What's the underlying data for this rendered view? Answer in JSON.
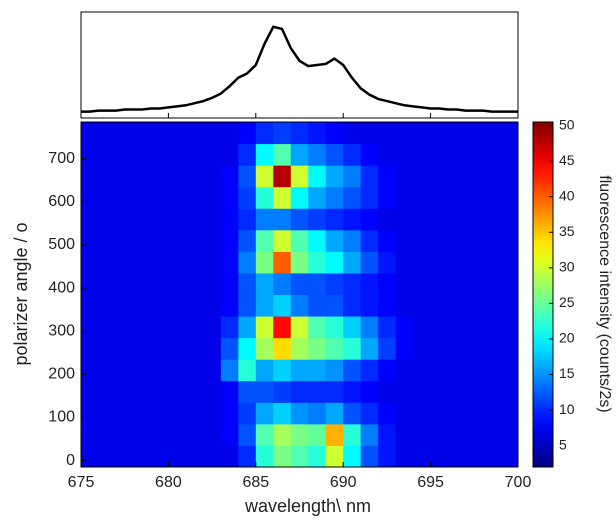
{
  "chart_data": [
    {
      "type": "line",
      "color": "#000000",
      "x": [
        675,
        675.5,
        676,
        676.5,
        677,
        677.5,
        678,
        678.5,
        679,
        679.5,
        680,
        680.5,
        681,
        681.5,
        682,
        682.5,
        683,
        683.5,
        684,
        684.5,
        685,
        685.5,
        686,
        686.5,
        687,
        687.5,
        688,
        688.5,
        689,
        689.5,
        690,
        690.5,
        691,
        691.5,
        692,
        692.5,
        693,
        693.5,
        694,
        694.5,
        695,
        695.5,
        696,
        696.5,
        697,
        697.5,
        698,
        698.5,
        699,
        699.5,
        700
      ],
      "values": [
        0.06,
        0.06,
        0.07,
        0.07,
        0.07,
        0.08,
        0.08,
        0.08,
        0.09,
        0.09,
        0.1,
        0.11,
        0.12,
        0.14,
        0.16,
        0.19,
        0.23,
        0.3,
        0.38,
        0.42,
        0.5,
        0.7,
        0.86,
        0.84,
        0.66,
        0.54,
        0.49,
        0.5,
        0.51,
        0.56,
        0.5,
        0.38,
        0.28,
        0.22,
        0.18,
        0.16,
        0.14,
        0.12,
        0.11,
        0.1,
        0.09,
        0.09,
        0.08,
        0.08,
        0.07,
        0.07,
        0.07,
        0.06,
        0.06,
        0.06,
        0.06
      ],
      "xlim": [
        675,
        700
      ],
      "ylim": [
        0,
        1
      ],
      "xticks": [
        680,
        685,
        690,
        695
      ]
    },
    {
      "type": "heatmap",
      "colormap": "jet",
      "xlabel": "wavelength\\ nm",
      "ylabel": "polarizer angle / o",
      "x_edges": [
        675,
        676,
        677,
        678,
        679,
        680,
        681,
        682,
        683,
        684,
        685,
        686,
        687,
        688,
        689,
        690,
        691,
        692,
        693,
        694,
        695,
        696,
        697,
        698,
        699,
        700
      ],
      "y_edges": [
        -15,
        35,
        85,
        135,
        185,
        235,
        285,
        335,
        385,
        435,
        485,
        535,
        585,
        635,
        685,
        735,
        785
      ],
      "z": [
        [
          7,
          7,
          7,
          7,
          7,
          7,
          7,
          7,
          7,
          10,
          22,
          26,
          24,
          22,
          30,
          20,
          12,
          9,
          7,
          7,
          7,
          7,
          7,
          7,
          7
        ],
        [
          7,
          7,
          7,
          7,
          7,
          7,
          7,
          7,
          8,
          12,
          24,
          28,
          26,
          25,
          36,
          22,
          14,
          9,
          7,
          7,
          7,
          7,
          7,
          7,
          7
        ],
        [
          7,
          7,
          7,
          7,
          7,
          7,
          7,
          7,
          8,
          11,
          16,
          18,
          15,
          14,
          16,
          12,
          10,
          8,
          7,
          7,
          7,
          7,
          7,
          7,
          7
        ],
        [
          7,
          7,
          7,
          7,
          7,
          7,
          7,
          7,
          8,
          12,
          12,
          11,
          10,
          10,
          10,
          9,
          8,
          7,
          7,
          7,
          7,
          7,
          7,
          7,
          7
        ],
        [
          7,
          7,
          7,
          7,
          7,
          7,
          7,
          7,
          14,
          22,
          16,
          18,
          16,
          16,
          15,
          12,
          10,
          8,
          7,
          7,
          7,
          7,
          7,
          7,
          7
        ],
        [
          7,
          7,
          7,
          7,
          7,
          7,
          7,
          7,
          12,
          20,
          28,
          34,
          28,
          26,
          24,
          22,
          16,
          11,
          8,
          7,
          7,
          7,
          7,
          7,
          7
        ],
        [
          7,
          7,
          7,
          7,
          7,
          7,
          7,
          7,
          10,
          16,
          30,
          44,
          30,
          24,
          22,
          18,
          14,
          10,
          8,
          7,
          7,
          7,
          7,
          7,
          7
        ],
        [
          7,
          7,
          7,
          7,
          7,
          7,
          7,
          7,
          8,
          12,
          16,
          18,
          14,
          12,
          12,
          10,
          9,
          8,
          7,
          7,
          7,
          7,
          7,
          7,
          7
        ],
        [
          7,
          7,
          7,
          7,
          7,
          7,
          7,
          7,
          8,
          12,
          16,
          14,
          12,
          12,
          11,
          10,
          9,
          8,
          7,
          7,
          7,
          7,
          7,
          7,
          7
        ],
        [
          7,
          7,
          7,
          7,
          7,
          7,
          7,
          7,
          8,
          14,
          26,
          40,
          26,
          22,
          20,
          16,
          12,
          9,
          7,
          7,
          7,
          7,
          7,
          7,
          7
        ],
        [
          7,
          7,
          7,
          7,
          7,
          7,
          7,
          7,
          8,
          12,
          24,
          30,
          24,
          20,
          16,
          14,
          10,
          8,
          7,
          7,
          7,
          7,
          7,
          7,
          7
        ],
        [
          7,
          7,
          7,
          7,
          7,
          7,
          7,
          7,
          8,
          10,
          14,
          14,
          12,
          11,
          10,
          9,
          8,
          7,
          7,
          7,
          7,
          7,
          7,
          7,
          7
        ],
        [
          7,
          7,
          7,
          7,
          7,
          7,
          7,
          7,
          8,
          11,
          22,
          30,
          20,
          16,
          14,
          12,
          10,
          8,
          7,
          7,
          7,
          7,
          7,
          7,
          7
        ],
        [
          7,
          7,
          7,
          7,
          7,
          7,
          7,
          7,
          8,
          12,
          30,
          48,
          30,
          20,
          16,
          14,
          10,
          8,
          7,
          7,
          7,
          7,
          7,
          7,
          7
        ],
        [
          7,
          7,
          7,
          7,
          7,
          7,
          7,
          7,
          7,
          10,
          20,
          24,
          16,
          14,
          12,
          10,
          8,
          7,
          7,
          7,
          7,
          7,
          7,
          7,
          7
        ],
        [
          7,
          7,
          7,
          7,
          7,
          7,
          7,
          7,
          7,
          8,
          10,
          11,
          10,
          9,
          8,
          7,
          7,
          7,
          7,
          7,
          7,
          7,
          7,
          7,
          7
        ]
      ],
      "xlim": [
        675,
        700
      ],
      "ylim": [
        -15,
        785
      ],
      "xticks": [
        675,
        680,
        685,
        690,
        695,
        700
      ],
      "yticks": [
        0,
        100,
        200,
        300,
        400,
        500,
        600,
        700
      ],
      "colorbar": {
        "label": "fluorescence intensity (counts/2s)",
        "lim": [
          2,
          50.5
        ],
        "ticks": [
          5,
          10,
          15,
          20,
          25,
          30,
          35,
          40,
          45,
          50
        ]
      }
    }
  ]
}
